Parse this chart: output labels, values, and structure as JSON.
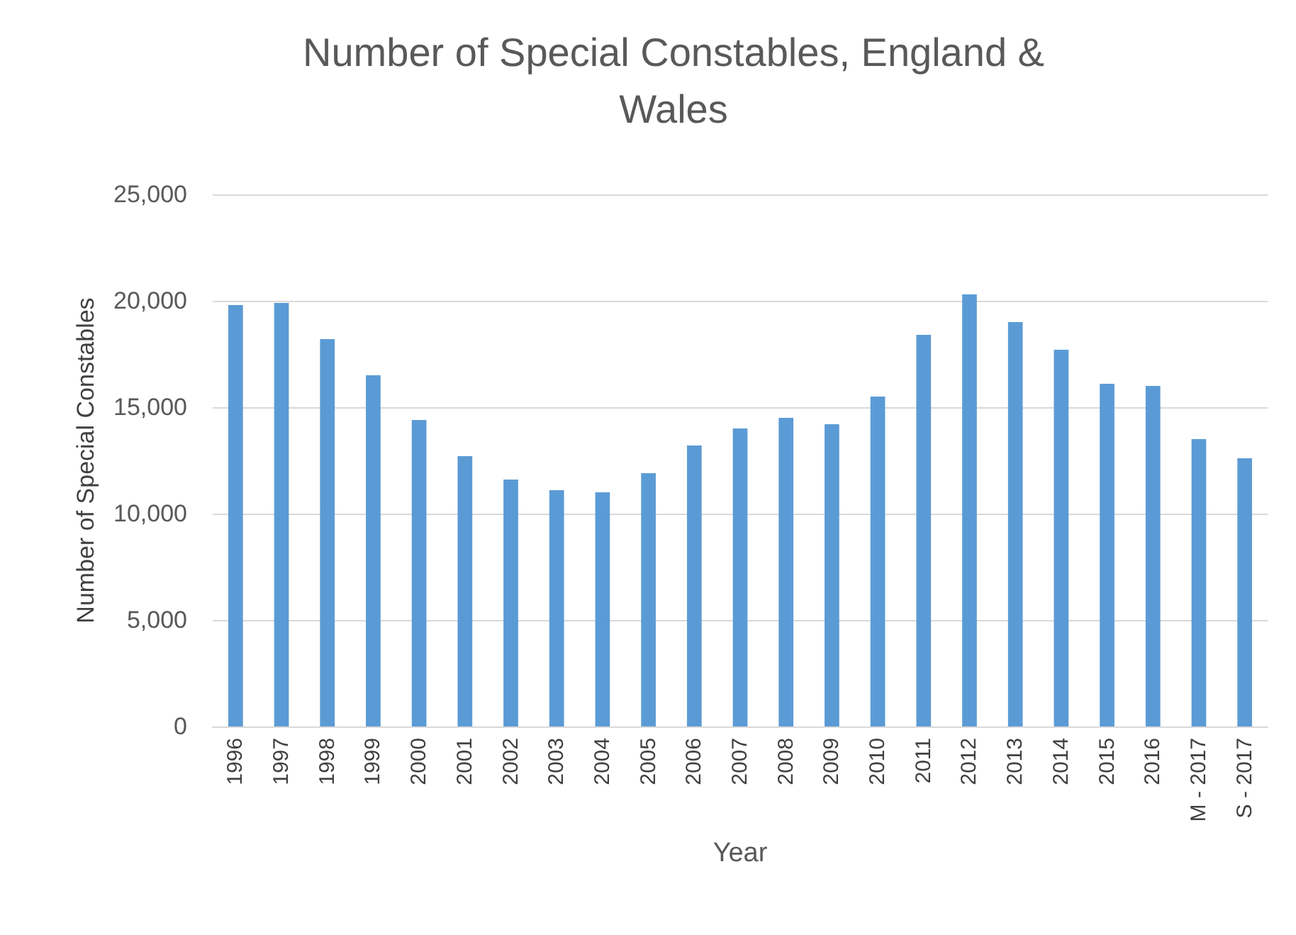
{
  "chart_data": {
    "type": "bar",
    "title": "Number of Special Constables, England &\nWales",
    "xlabel": "Year",
    "ylabel": "Number of Special Constables",
    "categories": [
      "1996",
      "1997",
      "1998",
      "1999",
      "2000",
      "2001",
      "2002",
      "2003",
      "2004",
      "2005",
      "2006",
      "2007",
      "2008",
      "2009",
      "2010",
      "2011",
      "2012",
      "2013",
      "2014",
      "2015",
      "2016",
      "M - 2017",
      "S - 2017"
    ],
    "values": [
      19800,
      19900,
      18200,
      16500,
      14400,
      12700,
      11600,
      11100,
      11000,
      11900,
      13200,
      14000,
      14500,
      14200,
      15500,
      18400,
      20300,
      19000,
      17700,
      16100,
      16000,
      13500,
      12600
    ],
    "color": "#5b9bd5",
    "ylim": [
      0,
      25000
    ],
    "yticks": [
      {
        "value": 0,
        "label": "0"
      },
      {
        "value": 5000,
        "label": "5,000"
      },
      {
        "value": 10000,
        "label": "10,000"
      },
      {
        "value": 15000,
        "label": "15,000"
      },
      {
        "value": 20000,
        "label": "20,000"
      },
      {
        "value": 25000,
        "label": "25,000"
      }
    ],
    "grid": "y"
  }
}
